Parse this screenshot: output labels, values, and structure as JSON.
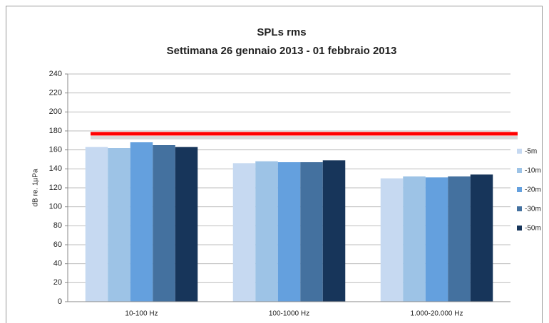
{
  "chart_data": {
    "type": "bar",
    "title": "SPLs rms",
    "subtitle": "Settimana 26 gennaio 2013 - 01 febbraio 2013",
    "y_label": "dB re. 1µPa",
    "categories": [
      "10-100 Hz",
      "100-1000 Hz",
      "1.000-20.000 Hz"
    ],
    "series": [
      {
        "name": "-5m",
        "color": "#c6d9f1",
        "values": [
          163,
          146,
          130
        ]
      },
      {
        "name": "-10m",
        "color": "#9dc3e6",
        "values": [
          162,
          148,
          132
        ]
      },
      {
        "name": "-20m",
        "color": "#64a0de",
        "values": [
          168,
          147,
          131
        ]
      },
      {
        "name": "-30m",
        "color": "#44719f",
        "values": [
          165,
          147,
          132
        ]
      },
      {
        "name": "-50m",
        "color": "#17355a",
        "values": [
          163,
          149,
          134
        ]
      }
    ],
    "reference_line": {
      "value": 177,
      "color": "#ff0000"
    },
    "ylim": [
      0,
      240
    ],
    "yticks": [
      0,
      20,
      40,
      60,
      80,
      100,
      120,
      140,
      160,
      180,
      200,
      220,
      240
    ],
    "grid": true,
    "legend": "right"
  }
}
